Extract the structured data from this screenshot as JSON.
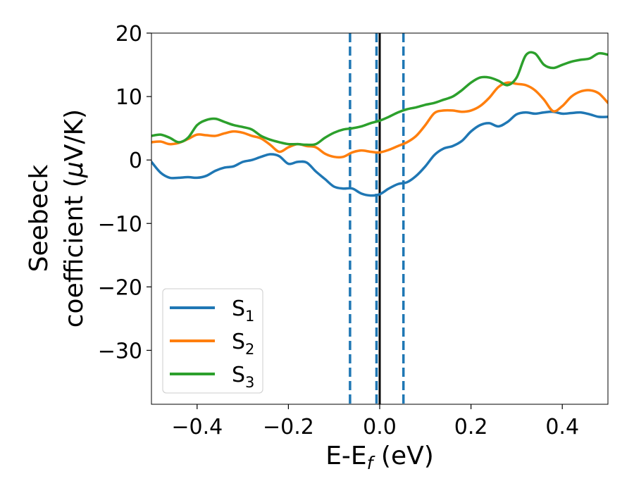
{
  "chart_data": {
    "type": "line",
    "xlabel": {
      "text": "E-E",
      "sub": "f",
      "suffix": " (eV)"
    },
    "ylabel": {
      "line1": "Seebeck",
      "line2_prefix": "coefficient  (",
      "mu": "μ",
      "line2_suffix": "V/K)"
    },
    "xlim": [
      -0.5,
      0.5
    ],
    "ylim": [
      -38.5,
      20
    ],
    "xticks": [
      {
        "value": -0.4,
        "label": "−0.4"
      },
      {
        "value": -0.2,
        "label": "−0.2"
      },
      {
        "value": 0.0,
        "label": "0.0"
      },
      {
        "value": 0.2,
        "label": "0.2"
      },
      {
        "value": 0.4,
        "label": "0.4"
      }
    ],
    "yticks": [
      {
        "value": 20,
        "label": "20"
      },
      {
        "value": 10,
        "label": "10"
      },
      {
        "value": 0,
        "label": "0"
      },
      {
        "value": -10,
        "label": "−10"
      },
      {
        "value": -20,
        "label": "−20"
      },
      {
        "value": -30,
        "label": "−30"
      }
    ],
    "grid": false,
    "legend": "lower-left",
    "vlines": [
      {
        "x": 0.0,
        "style": "solid",
        "color": "#000000"
      },
      {
        "x": -0.065,
        "style": "dashed",
        "color": "#1f77b4"
      },
      {
        "x": -0.007,
        "style": "dashed",
        "color": "#1f77b4"
      },
      {
        "x": 0.052,
        "style": "dashed",
        "color": "#1f77b4"
      }
    ],
    "series": [
      {
        "name": "S",
        "sub": "1",
        "color": "#1f77b4",
        "x": [
          -0.5,
          -0.48,
          -0.46,
          -0.44,
          -0.42,
          -0.4,
          -0.38,
          -0.36,
          -0.34,
          -0.32,
          -0.3,
          -0.28,
          -0.26,
          -0.24,
          -0.22,
          -0.2,
          -0.18,
          -0.16,
          -0.14,
          -0.12,
          -0.1,
          -0.08,
          -0.06,
          -0.04,
          -0.02,
          0.0,
          0.02,
          0.04,
          0.06,
          0.08,
          0.1,
          0.12,
          0.14,
          0.16,
          0.18,
          0.2,
          0.22,
          0.24,
          0.26,
          0.28,
          0.3,
          0.32,
          0.34,
          0.36,
          0.38,
          0.4,
          0.42,
          0.44,
          0.46,
          0.48,
          0.5
        ],
        "y": [
          -0.3,
          -2.0,
          -2.8,
          -2.8,
          -2.7,
          -2.8,
          -2.5,
          -1.7,
          -1.2,
          -1.0,
          -0.3,
          0.0,
          0.5,
          0.9,
          0.6,
          -0.6,
          -0.3,
          -0.4,
          -1.8,
          -3.0,
          -4.2,
          -4.5,
          -4.5,
          -5.3,
          -5.6,
          -5.4,
          -4.5,
          -3.8,
          -3.5,
          -2.5,
          -1.0,
          0.8,
          1.8,
          2.2,
          3.0,
          4.5,
          5.5,
          5.8,
          5.3,
          6.0,
          7.2,
          7.5,
          7.3,
          7.5,
          7.6,
          7.3,
          7.4,
          7.5,
          7.2,
          6.8,
          6.8
        ]
      },
      {
        "name": "S",
        "sub": "2",
        "color": "#ff7f0e",
        "x": [
          -0.5,
          -0.48,
          -0.46,
          -0.44,
          -0.42,
          -0.4,
          -0.38,
          -0.36,
          -0.34,
          -0.32,
          -0.3,
          -0.28,
          -0.26,
          -0.24,
          -0.22,
          -0.2,
          -0.18,
          -0.16,
          -0.14,
          -0.12,
          -0.1,
          -0.08,
          -0.06,
          -0.04,
          -0.02,
          0.0,
          0.02,
          0.04,
          0.06,
          0.08,
          0.1,
          0.12,
          0.14,
          0.16,
          0.18,
          0.2,
          0.22,
          0.24,
          0.26,
          0.28,
          0.3,
          0.32,
          0.34,
          0.36,
          0.38,
          0.4,
          0.42,
          0.44,
          0.46,
          0.48,
          0.5
        ],
        "y": [
          2.8,
          2.9,
          2.5,
          2.7,
          3.3,
          4.0,
          3.9,
          3.8,
          4.2,
          4.5,
          4.3,
          3.8,
          3.4,
          2.4,
          1.3,
          2.0,
          2.5,
          2.2,
          2.0,
          1.0,
          0.5,
          0.5,
          1.2,
          1.5,
          1.3,
          1.2,
          1.6,
          2.2,
          2.8,
          3.8,
          5.5,
          7.4,
          7.8,
          7.8,
          7.6,
          7.8,
          8.5,
          9.8,
          11.5,
          12.2,
          12.0,
          11.8,
          11.0,
          9.5,
          7.7,
          8.5,
          10.0,
          10.8,
          11.0,
          10.5,
          9.0
        ]
      },
      {
        "name": "S",
        "sub": "3",
        "color": "#2ca02c",
        "x": [
          -0.5,
          -0.48,
          -0.46,
          -0.44,
          -0.42,
          -0.4,
          -0.38,
          -0.36,
          -0.34,
          -0.32,
          -0.3,
          -0.28,
          -0.26,
          -0.24,
          -0.22,
          -0.2,
          -0.18,
          -0.16,
          -0.14,
          -0.12,
          -0.1,
          -0.08,
          -0.06,
          -0.04,
          -0.02,
          0.0,
          0.02,
          0.04,
          0.06,
          0.08,
          0.1,
          0.12,
          0.14,
          0.16,
          0.18,
          0.2,
          0.22,
          0.24,
          0.26,
          0.28,
          0.3,
          0.32,
          0.34,
          0.36,
          0.38,
          0.4,
          0.42,
          0.44,
          0.46,
          0.48,
          0.5
        ],
        "y": [
          3.8,
          4.0,
          3.5,
          2.8,
          3.5,
          5.5,
          6.3,
          6.5,
          6.0,
          5.5,
          5.2,
          4.8,
          3.8,
          3.2,
          2.8,
          2.5,
          2.5,
          2.4,
          2.5,
          3.5,
          4.3,
          4.8,
          5.0,
          5.3,
          5.8,
          6.2,
          6.8,
          7.5,
          8.0,
          8.3,
          8.7,
          9.0,
          9.5,
          10.0,
          11.0,
          12.2,
          13.0,
          13.0,
          12.5,
          11.8,
          13.0,
          16.5,
          16.8,
          15.0,
          14.5,
          15.0,
          15.5,
          15.8,
          16.0,
          16.8,
          16.6
        ]
      }
    ]
  }
}
